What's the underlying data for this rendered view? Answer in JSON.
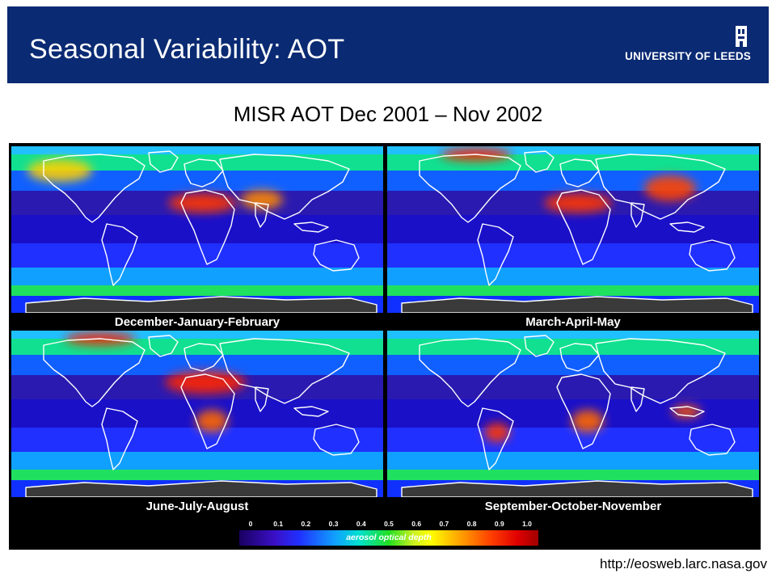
{
  "slide": {
    "title": "Seasonal Variability: AOT",
    "subtitle": "MISR AOT Dec 2001 – Nov 2002",
    "source": "http://eosweb.larc.nasa.gov"
  },
  "logo": {
    "text": "UNIVERSITY OF LEEDS",
    "icon": "leeds-tower-icon"
  },
  "maps": [
    {
      "id": "djf",
      "label": "December-January-February",
      "hotspots": [
        "sahel",
        "south-asia",
        "north-pacific"
      ]
    },
    {
      "id": "mam",
      "label": "March-April-May",
      "hotspots": [
        "sahel",
        "east-asia",
        "arctic"
      ]
    },
    {
      "id": "jja",
      "label": "June-July-August",
      "hotspots": [
        "sahara",
        "southern-africa",
        "arctic"
      ]
    },
    {
      "id": "son",
      "label": "September-October-November",
      "hotspots": [
        "amazon",
        "southern-africa",
        "indonesia"
      ]
    }
  ],
  "colorbar": {
    "ticks": [
      "0",
      "0.1",
      "0.2",
      "0.3",
      "0.4",
      "0.5",
      "0.6",
      "0.7",
      "0.8",
      "0.9",
      "1.0"
    ],
    "label": "aerosol optical depth",
    "range": [
      0,
      1.0
    ]
  },
  "colors": {
    "header_bg": "#0a2a73",
    "ocean_low": "#2a1ab0",
    "land_outline": "#ffffff"
  }
}
